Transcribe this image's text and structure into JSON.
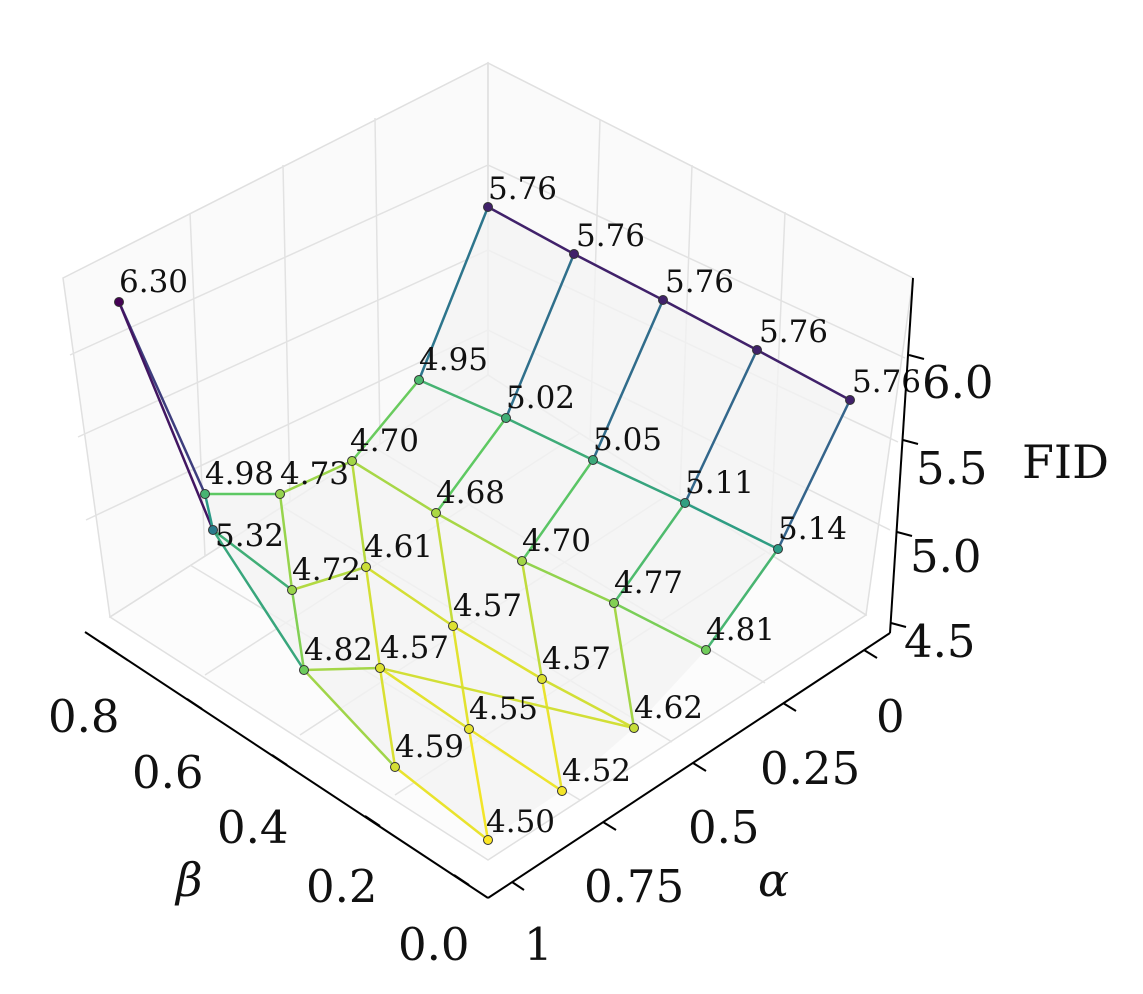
{
  "chart_data": {
    "type": "surface-3d",
    "title": "",
    "xlabel": "α",
    "ylabel": "β",
    "zlabel": "FID",
    "x_ticks": [
      "0",
      "0.25",
      "0.5",
      "0.75",
      "1"
    ],
    "y_ticks": [
      "0.0",
      "0.2",
      "0.4",
      "0.6",
      "0.8"
    ],
    "z_ticks": [
      "4.5",
      "5.0",
      "5.5",
      "6.0"
    ],
    "zlim": [
      4.5,
      6.3
    ],
    "grid": true,
    "colormap": "viridis",
    "points": [
      {
        "label": "5.76",
        "value": 5.76
      },
      {
        "label": "5.76",
        "value": 5.76
      },
      {
        "label": "5.76",
        "value": 5.76
      },
      {
        "label": "5.76",
        "value": 5.76
      },
      {
        "label": "5.76",
        "value": 5.76
      },
      {
        "label": "4.95",
        "value": 4.95
      },
      {
        "label": "5.02",
        "value": 5.02
      },
      {
        "label": "5.05",
        "value": 5.05
      },
      {
        "label": "5.11",
        "value": 5.11
      },
      {
        "label": "5.14",
        "value": 5.14
      },
      {
        "label": "4.70",
        "value": 4.7
      },
      {
        "label": "4.68",
        "value": 4.68
      },
      {
        "label": "4.70",
        "value": 4.7
      },
      {
        "label": "4.77",
        "value": 4.77
      },
      {
        "label": "4.81",
        "value": 4.81
      },
      {
        "label": "4.61",
        "value": 4.61
      },
      {
        "label": "4.57",
        "value": 4.57
      },
      {
        "label": "4.57",
        "value": 4.57
      },
      {
        "label": "4.62",
        "value": 4.62
      },
      {
        "label": "4.57",
        "value": 4.57
      },
      {
        "label": "4.55",
        "value": 4.55
      },
      {
        "label": "4.52",
        "value": 4.52
      },
      {
        "label": "4.59",
        "value": 4.59
      },
      {
        "label": "4.50",
        "value": 4.5
      },
      {
        "label": "6.30",
        "value": 6.3
      },
      {
        "label": "4.98",
        "value": 4.98
      },
      {
        "label": "4.73",
        "value": 4.73
      },
      {
        "label": "5.32",
        "value": 5.32
      },
      {
        "label": "4.72",
        "value": 4.72
      },
      {
        "label": "4.82",
        "value": 4.82
      }
    ],
    "segments": [
      [
        0,
        1
      ],
      [
        1,
        2
      ],
      [
        2,
        3
      ],
      [
        3,
        4
      ],
      [
        5,
        6
      ],
      [
        6,
        7
      ],
      [
        7,
        8
      ],
      [
        8,
        9
      ],
      [
        10,
        11
      ],
      [
        11,
        12
      ],
      [
        12,
        13
      ],
      [
        13,
        14
      ],
      [
        15,
        16
      ],
      [
        16,
        17
      ],
      [
        17,
        18
      ],
      [
        19,
        20
      ],
      [
        20,
        21
      ],
      [
        22,
        23
      ],
      [
        0,
        5
      ],
      [
        1,
        6
      ],
      [
        2,
        7
      ],
      [
        3,
        8
      ],
      [
        4,
        9
      ],
      [
        5,
        10
      ],
      [
        6,
        11
      ],
      [
        7,
        12
      ],
      [
        8,
        13
      ],
      [
        9,
        14
      ],
      [
        10,
        15
      ],
      [
        11,
        16
      ],
      [
        12,
        17
      ],
      [
        13,
        18
      ],
      [
        15,
        19
      ],
      [
        16,
        20
      ],
      [
        17,
        21
      ],
      [
        19,
        22
      ],
      [
        20,
        23
      ],
      [
        24,
        25
      ],
      [
        24,
        27
      ],
      [
        25,
        26
      ],
      [
        26,
        10
      ],
      [
        27,
        28
      ],
      [
        28,
        15
      ],
      [
        27,
        29
      ],
      [
        29,
        19
      ],
      [
        25,
        27
      ],
      [
        26,
        28
      ],
      [
        28,
        29
      ],
      [
        29,
        22
      ],
      [
        19,
        18
      ]
    ]
  }
}
